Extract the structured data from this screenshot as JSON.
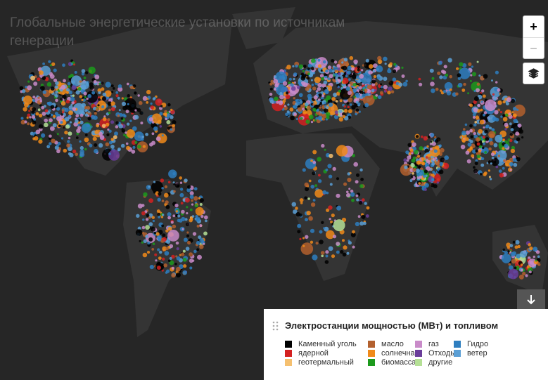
{
  "title": "Глобальные энергетические установки по источникам генерации",
  "zoom_controls": {
    "zoom_in": "+",
    "zoom_out": "−"
  },
  "legend": {
    "title": "Электростанции мощностью (МВт) и топливом",
    "items": [
      {
        "name": "Каменный уголь",
        "color": "#000000"
      },
      {
        "name": "масло",
        "color": "#b3602e"
      },
      {
        "name": "газ",
        "color": "#c98bc9"
      },
      {
        "name": "Гидро",
        "color": "#2e7ebf"
      },
      {
        "name": "ядерной",
        "color": "#d42121"
      },
      {
        "name": "солнечная",
        "color": "#f08a1a"
      },
      {
        "name": "Отходы",
        "color": "#6a3d9a"
      },
      {
        "name": "ветер",
        "color": "#5b9fd5"
      },
      {
        "name": "геотермальный",
        "color": "#f5c070"
      },
      {
        "name": "биомасса",
        "color": "#1c9a1c"
      },
      {
        "name": "другие",
        "color": "#b5e096"
      }
    ]
  }
}
